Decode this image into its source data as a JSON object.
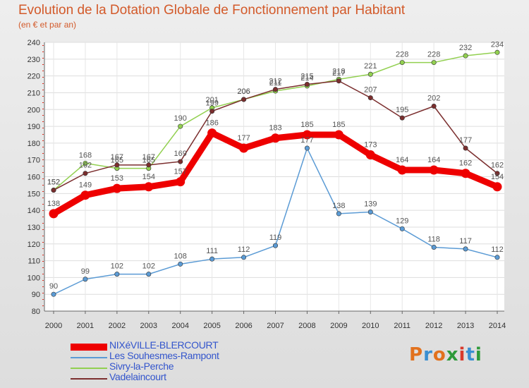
{
  "header": {
    "title": "Evolution de la Dotation Globale de Fonctionnement par Habitant",
    "subtitle": "(en € et par an)"
  },
  "logo": {
    "text": "Proxiti",
    "letters": [
      "P",
      "r",
      "o",
      "x",
      "i",
      "t",
      "i"
    ],
    "letter_colors": [
      "#e2711d",
      "#3a8fd1",
      "#e2711d",
      "#2e9a3a",
      "#d93a2b",
      "#3a8fd1",
      "#2e9a3a"
    ]
  },
  "chart_data": {
    "type": "line",
    "title": "Evolution de la Dotation Globale de Fonctionnement par Habitant",
    "subtitle": "(en € et par an)",
    "x": [
      "2000",
      "2001",
      "2002",
      "2003",
      "2004",
      "2005",
      "2006",
      "2007",
      "2008",
      "2009",
      "2010",
      "2011",
      "2012",
      "2013",
      "2014"
    ],
    "y_ticks": [
      "80",
      "90",
      "100",
      "110",
      "120",
      "130",
      "140",
      "150",
      "160",
      "170",
      "180",
      "190",
      "200",
      "210",
      "220",
      "230",
      "240"
    ],
    "ylim": [
      80,
      240
    ],
    "grid": true,
    "legend_position": "bottom-left",
    "series": [
      {
        "name": "NIXéVILLE-BLERCOURT",
        "color": "#ee0000",
        "label_color": "#555555",
        "emphasis": true,
        "values": [
          138,
          149,
          153,
          154,
          157,
          186,
          177,
          183,
          185,
          185,
          173,
          164,
          164,
          162,
          154
        ]
      },
      {
        "name": "Les Souhesmes-Rampont",
        "color": "#5b9bd5",
        "label_color": "#555555",
        "emphasis": false,
        "values": [
          90,
          99,
          102,
          102,
          108,
          111,
          112,
          119,
          177,
          138,
          139,
          129,
          118,
          117,
          112
        ]
      },
      {
        "name": "Sivry-la-Perche",
        "color": "#92d050",
        "label_color": "#555555",
        "emphasis": false,
        "values": [
          152,
          168,
          165,
          165,
          190,
          201,
          206,
          211,
          214,
          218,
          221,
          228,
          228,
          232,
          234
        ]
      },
      {
        "name": "Vadelaincourt",
        "color": "#7b2e2e",
        "label_color": "#555555",
        "emphasis": false,
        "values": [
          152,
          162,
          167,
          167,
          169,
          199,
          206,
          212,
          215,
          217,
          207,
          195,
          202,
          177,
          162
        ]
      }
    ]
  }
}
